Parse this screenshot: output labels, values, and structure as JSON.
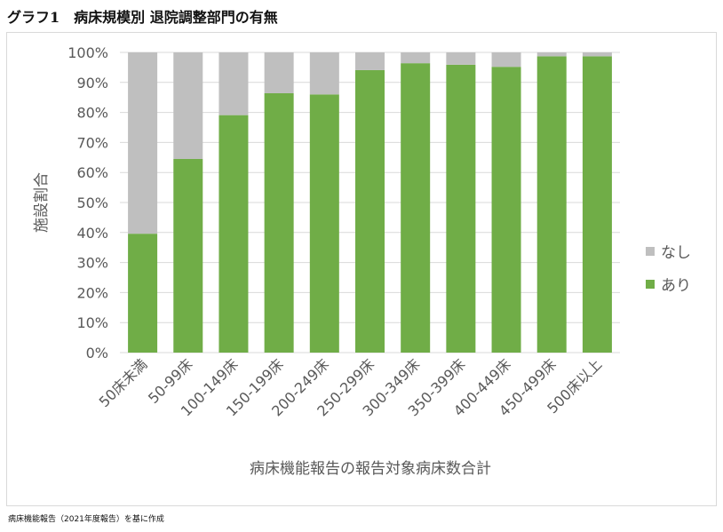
{
  "title": "グラフ1　病床規模別 退院調整部門の有無",
  "footer": "病床機能報告（2021年度報告）を基に作成",
  "chart_data": {
    "type": "bar",
    "stacked": true,
    "categories": [
      "50床未満",
      "50-99床",
      "100-149床",
      "150-199床",
      "200-249床",
      "250-299床",
      "300-349床",
      "350-399床",
      "400-449床",
      "450-499床",
      "500床以上"
    ],
    "series": [
      {
        "name": "あり",
        "color": "#70ad47",
        "values": [
          39.6,
          64.5,
          79.1,
          86.4,
          86.0,
          94.1,
          96.4,
          95.9,
          95.2,
          98.7,
          98.7
        ]
      },
      {
        "name": "なし",
        "color": "#bfbfbf",
        "values": [
          60.4,
          35.5,
          20.9,
          13.6,
          14.0,
          5.9,
          3.6,
          4.1,
          4.8,
          1.3,
          1.3
        ]
      }
    ],
    "xlabel": "病床機能報告の報告対象病床数合計",
    "ylabel": "施設割合",
    "ylim": [
      0,
      100
    ],
    "yticks": [
      "0%",
      "10%",
      "20%",
      "30%",
      "40%",
      "50%",
      "60%",
      "70%",
      "80%",
      "90%",
      "100%"
    ],
    "grid": true,
    "legend": [
      "なし",
      "あり"
    ],
    "legend_position": "right"
  }
}
